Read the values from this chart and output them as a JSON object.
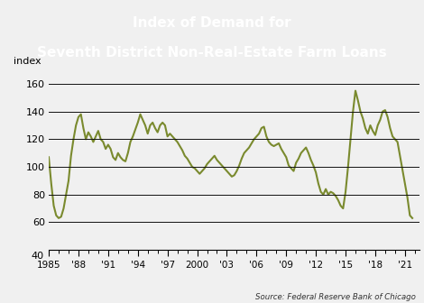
{
  "title_line1": "Index of Demand for",
  "title_line2": "Seventh District Non-Real-Estate Farm Loans",
  "title_bg_color": "#1a72b8",
  "title_text_color": "#ffffff",
  "ylabel": "index",
  "source": "Source: Federal Reserve Bank of Chicago",
  "ylim": [
    40,
    168
  ],
  "yticks": [
    60,
    80,
    100,
    120,
    140,
    160
  ],
  "ytick_labels_with_40": [
    40,
    60,
    80,
    100,
    120,
    140,
    160
  ],
  "line_color": "#7a8a2e",
  "line_width": 1.5,
  "bg_color": "#f0f0f0",
  "plot_bg_color": "#f0f0f0",
  "grid_color": "#111111",
  "xtick_labels": [
    "1985",
    "'88",
    "'91",
    "'94",
    "'97",
    "2000",
    "'03",
    "'06",
    "'09",
    "'12",
    "'15",
    "'18",
    "'21"
  ],
  "xtick_positions": [
    1985,
    1988,
    1991,
    1994,
    1997,
    2000,
    2003,
    2006,
    2009,
    2012,
    2015,
    2018,
    2021
  ],
  "data": [
    [
      1985.0,
      107
    ],
    [
      1985.25,
      88
    ],
    [
      1985.5,
      72
    ],
    [
      1985.75,
      65
    ],
    [
      1986.0,
      63
    ],
    [
      1986.25,
      64
    ],
    [
      1986.5,
      70
    ],
    [
      1986.75,
      80
    ],
    [
      1987.0,
      90
    ],
    [
      1987.25,
      108
    ],
    [
      1987.5,
      120
    ],
    [
      1987.75,
      130
    ],
    [
      1988.0,
      136
    ],
    [
      1988.25,
      138
    ],
    [
      1988.5,
      128
    ],
    [
      1988.75,
      120
    ],
    [
      1989.0,
      125
    ],
    [
      1989.25,
      122
    ],
    [
      1989.5,
      118
    ],
    [
      1989.75,
      122
    ],
    [
      1990.0,
      126
    ],
    [
      1990.25,
      120
    ],
    [
      1990.5,
      118
    ],
    [
      1990.75,
      113
    ],
    [
      1991.0,
      116
    ],
    [
      1991.25,
      113
    ],
    [
      1991.5,
      107
    ],
    [
      1991.75,
      105
    ],
    [
      1992.0,
      110
    ],
    [
      1992.25,
      107
    ],
    [
      1992.5,
      105
    ],
    [
      1992.75,
      104
    ],
    [
      1993.0,
      110
    ],
    [
      1993.25,
      118
    ],
    [
      1993.5,
      122
    ],
    [
      1993.75,
      127
    ],
    [
      1994.0,
      132
    ],
    [
      1994.25,
      138
    ],
    [
      1994.5,
      134
    ],
    [
      1994.75,
      130
    ],
    [
      1995.0,
      124
    ],
    [
      1995.25,
      130
    ],
    [
      1995.5,
      132
    ],
    [
      1995.75,
      128
    ],
    [
      1996.0,
      125
    ],
    [
      1996.25,
      130
    ],
    [
      1996.5,
      132
    ],
    [
      1996.75,
      130
    ],
    [
      1997.0,
      122
    ],
    [
      1997.25,
      124
    ],
    [
      1997.5,
      122
    ],
    [
      1997.75,
      120
    ],
    [
      1998.0,
      118
    ],
    [
      1998.25,
      115
    ],
    [
      1998.5,
      112
    ],
    [
      1998.75,
      108
    ],
    [
      1999.0,
      106
    ],
    [
      1999.25,
      103
    ],
    [
      1999.5,
      100
    ],
    [
      1999.75,
      99
    ],
    [
      2000.0,
      97
    ],
    [
      2000.25,
      95
    ],
    [
      2000.5,
      97
    ],
    [
      2000.75,
      99
    ],
    [
      2001.0,
      102
    ],
    [
      2001.25,
      104
    ],
    [
      2001.5,
      106
    ],
    [
      2001.75,
      108
    ],
    [
      2002.0,
      105
    ],
    [
      2002.25,
      103
    ],
    [
      2002.5,
      101
    ],
    [
      2002.75,
      99
    ],
    [
      2003.0,
      97
    ],
    [
      2003.25,
      95
    ],
    [
      2003.5,
      93
    ],
    [
      2003.75,
      94
    ],
    [
      2004.0,
      97
    ],
    [
      2004.25,
      101
    ],
    [
      2004.5,
      106
    ],
    [
      2004.75,
      110
    ],
    [
      2005.0,
      112
    ],
    [
      2005.25,
      114
    ],
    [
      2005.5,
      117
    ],
    [
      2005.75,
      120
    ],
    [
      2006.0,
      122
    ],
    [
      2006.25,
      124
    ],
    [
      2006.5,
      128
    ],
    [
      2006.75,
      129
    ],
    [
      2007.0,
      122
    ],
    [
      2007.25,
      118
    ],
    [
      2007.5,
      116
    ],
    [
      2007.75,
      115
    ],
    [
      2008.0,
      116
    ],
    [
      2008.25,
      117
    ],
    [
      2008.5,
      113
    ],
    [
      2008.75,
      110
    ],
    [
      2009.0,
      107
    ],
    [
      2009.25,
      101
    ],
    [
      2009.5,
      99
    ],
    [
      2009.75,
      97
    ],
    [
      2010.0,
      103
    ],
    [
      2010.25,
      106
    ],
    [
      2010.5,
      110
    ],
    [
      2010.75,
      112
    ],
    [
      2011.0,
      114
    ],
    [
      2011.25,
      110
    ],
    [
      2011.5,
      105
    ],
    [
      2011.75,
      101
    ],
    [
      2012.0,
      96
    ],
    [
      2012.25,
      88
    ],
    [
      2012.5,
      82
    ],
    [
      2012.75,
      80
    ],
    [
      2013.0,
      84
    ],
    [
      2013.25,
      80
    ],
    [
      2013.5,
      82
    ],
    [
      2013.75,
      81
    ],
    [
      2014.0,
      79
    ],
    [
      2014.25,
      76
    ],
    [
      2014.5,
      72
    ],
    [
      2014.75,
      70
    ],
    [
      2015.0,
      82
    ],
    [
      2015.25,
      100
    ],
    [
      2015.5,
      120
    ],
    [
      2015.75,
      140
    ],
    [
      2016.0,
      155
    ],
    [
      2016.25,
      148
    ],
    [
      2016.5,
      140
    ],
    [
      2016.75,
      135
    ],
    [
      2017.0,
      128
    ],
    [
      2017.25,
      124
    ],
    [
      2017.5,
      130
    ],
    [
      2017.75,
      126
    ],
    [
      2018.0,
      123
    ],
    [
      2018.25,
      130
    ],
    [
      2018.5,
      134
    ],
    [
      2018.75,
      140
    ],
    [
      2019.0,
      141
    ],
    [
      2019.25,
      136
    ],
    [
      2019.5,
      128
    ],
    [
      2019.75,
      122
    ],
    [
      2020.0,
      120
    ],
    [
      2020.25,
      118
    ],
    [
      2020.5,
      108
    ],
    [
      2020.75,
      98
    ],
    [
      2021.0,
      88
    ],
    [
      2021.25,
      78
    ],
    [
      2021.5,
      65
    ],
    [
      2021.75,
      63
    ]
  ]
}
